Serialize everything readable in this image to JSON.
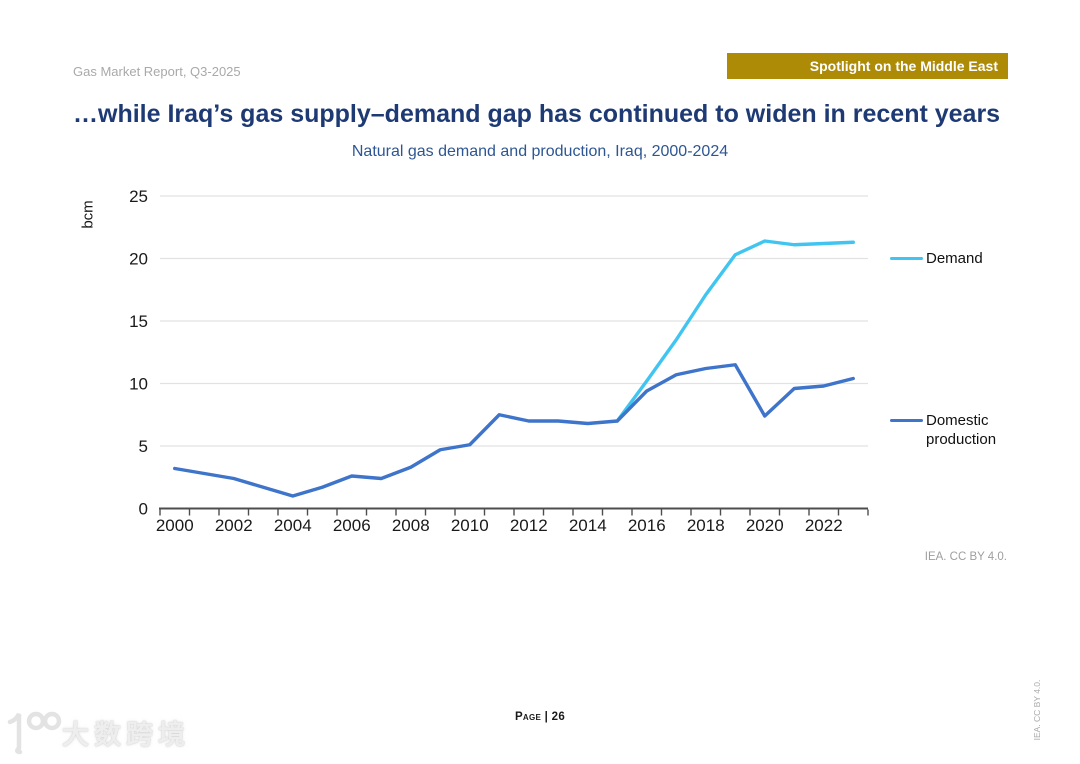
{
  "header": {
    "report_label": "Gas Market Report, Q3-2025",
    "badge_label": "Spotlight on the Middle East",
    "badge_color": "#ad8b07"
  },
  "title": "…while Iraq’s gas supply–demand gap has continued to widen in recent years",
  "subtitle": "Natural gas demand and production, Iraq, 2000-2024",
  "chart_data": {
    "type": "line",
    "title": "Natural gas demand and production, Iraq, 2000-2024",
    "xlabel": "",
    "ylabel": "bcm",
    "ylim": [
      0,
      25
    ],
    "yticks": [
      0,
      5,
      10,
      15,
      20,
      25
    ],
    "grid": "horizontal",
    "legend_position": "right",
    "x": [
      2000,
      2001,
      2002,
      2003,
      2004,
      2005,
      2006,
      2007,
      2008,
      2009,
      2010,
      2011,
      2012,
      2013,
      2014,
      2015,
      2016,
      2017,
      2018,
      2019,
      2020,
      2021,
      2022,
      2023
    ],
    "xtick_labels": [
      "2000",
      "2002",
      "2004",
      "2006",
      "2008",
      "2010",
      "2012",
      "2014",
      "2016",
      "2018",
      "2020",
      "2022"
    ],
    "series": [
      {
        "name": "Demand",
        "color": "#41c5f0",
        "values": [
          null,
          null,
          null,
          null,
          null,
          null,
          null,
          null,
          null,
          null,
          null,
          null,
          null,
          null,
          null,
          7.0,
          10.2,
          13.5,
          17.1,
          20.3,
          21.4,
          21.1,
          21.2,
          21.3
        ]
      },
      {
        "name": "Domestic production",
        "color": "#3e74c9",
        "values": [
          3.2,
          2.8,
          2.4,
          1.7,
          1.0,
          1.7,
          2.6,
          2.4,
          3.3,
          4.7,
          5.1,
          7.5,
          7.0,
          7.0,
          6.8,
          7.0,
          9.4,
          10.7,
          11.2,
          11.5,
          7.4,
          9.6,
          9.8,
          10.4
        ]
      }
    ]
  },
  "footer": {
    "credit": "IEA. CC BY 4.0.",
    "page_label": "Page | 26",
    "side_credit": "IEA. CC BY 4.0.",
    "watermark": "大数跨境"
  }
}
